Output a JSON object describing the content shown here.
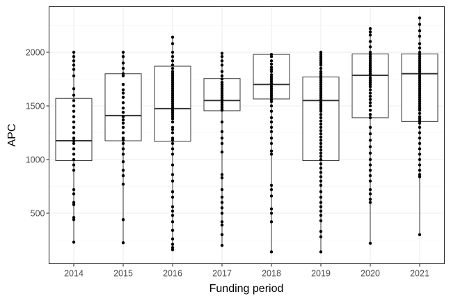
{
  "chart_data": {
    "type": "boxplot",
    "xlabel": "Funding period",
    "ylabel": "APC",
    "ylim": [
      50,
      2400
    ],
    "y_ticks": [
      500,
      1000,
      1500,
      2000
    ],
    "grid": true,
    "categories": [
      "2014",
      "2015",
      "2016",
      "2017",
      "2018",
      "2019",
      "2020",
      "2021"
    ],
    "boxes": [
      {
        "category": "2014",
        "whisker_low": 230,
        "q1": 990,
        "median": 1175,
        "q3": 1570,
        "whisker_high": 2000
      },
      {
        "category": "2015",
        "whisker_low": 225,
        "q1": 1175,
        "median": 1410,
        "q3": 1800,
        "whisker_high": 2000
      },
      {
        "category": "2016",
        "whisker_low": 160,
        "q1": 1170,
        "median": 1475,
        "q3": 1870,
        "whisker_high": 2140
      },
      {
        "category": "2017",
        "whisker_low": 200,
        "q1": 1455,
        "median": 1550,
        "q3": 1755,
        "whisker_high": 1990
      },
      {
        "category": "2018",
        "whisker_low": 140,
        "q1": 1565,
        "median": 1700,
        "q3": 1980,
        "whisker_high": 1980
      },
      {
        "category": "2019",
        "whisker_low": 140,
        "q1": 990,
        "median": 1550,
        "q3": 1770,
        "whisker_high": 2000
      },
      {
        "category": "2020",
        "whisker_low": 220,
        "q1": 1390,
        "median": 1785,
        "q3": 1985,
        "whisker_high": 2220
      },
      {
        "category": "2021",
        "whisker_low": 300,
        "q1": 1355,
        "median": 1800,
        "q3": 1985,
        "whisker_high": 2320
      }
    ],
    "points": [
      {
        "category": "2014",
        "values": [
          2000,
          1960,
          1920,
          1880,
          1840,
          1780,
          1660,
          1600,
          1550,
          1500,
          1450,
          1400,
          1350,
          1300,
          1250,
          1200,
          1175,
          1150,
          1100,
          1050,
          1000,
          950,
          900,
          720,
          680,
          600,
          580,
          460,
          440,
          230
        ]
      },
      {
        "category": "2015",
        "values": [
          2000,
          1960,
          1900,
          1850,
          1800,
          1780,
          1700,
          1650,
          1620,
          1580,
          1530,
          1480,
          1440,
          1400,
          1370,
          1340,
          1300,
          1250,
          1200,
          1180,
          1150,
          1100,
          1050,
          980,
          900,
          850,
          770,
          440,
          225
        ]
      },
      {
        "category": "2016",
        "values": [
          2140,
          2080,
          2000,
          1960,
          1920,
          1880,
          1850,
          1820,
          1800,
          1780,
          1760,
          1740,
          1720,
          1700,
          1680,
          1660,
          1640,
          1620,
          1600,
          1580,
          1560,
          1540,
          1520,
          1500,
          1480,
          1460,
          1440,
          1420,
          1400,
          1380,
          1350,
          1300,
          1280,
          1250,
          1200,
          1180,
          1150,
          1100,
          1050,
          950,
          860,
          800,
          700,
          650,
          560,
          520,
          480,
          420,
          340,
          260,
          210,
          180,
          160
        ]
      },
      {
        "category": "2017",
        "values": [
          1990,
          1960,
          1920,
          1880,
          1820,
          1780,
          1750,
          1720,
          1700,
          1680,
          1660,
          1640,
          1620,
          1600,
          1580,
          1560,
          1550,
          1530,
          1510,
          1490,
          1470,
          1460,
          1350,
          1260,
          1200,
          1150,
          1070,
          860,
          830,
          720,
          650,
          600,
          550,
          500,
          420,
          390,
          300,
          200
        ]
      },
      {
        "category": "2018",
        "values": [
          1980,
          1960,
          1920,
          1890,
          1860,
          1840,
          1820,
          1790,
          1770,
          1750,
          1730,
          1710,
          1700,
          1680,
          1660,
          1640,
          1620,
          1600,
          1580,
          1560,
          1540,
          1500,
          1450,
          1390,
          1350,
          1300,
          1260,
          1200,
          1150,
          1080,
          1050,
          760,
          720,
          660,
          540,
          500,
          420,
          140
        ]
      },
      {
        "category": "2019",
        "values": [
          2000,
          1980,
          1960,
          1940,
          1920,
          1900,
          1880,
          1850,
          1820,
          1800,
          1780,
          1760,
          1740,
          1720,
          1700,
          1680,
          1660,
          1640,
          1620,
          1600,
          1580,
          1560,
          1550,
          1530,
          1510,
          1490,
          1470,
          1450,
          1420,
          1390,
          1360,
          1330,
          1300,
          1270,
          1240,
          1210,
          1180,
          1150,
          1120,
          1090,
          1060,
          1030,
          1000,
          960,
          920,
          880,
          840,
          800,
          760,
          700,
          650,
          600,
          560,
          520,
          480,
          430,
          330,
          280,
          140
        ]
      },
      {
        "category": "2020",
        "values": [
          2220,
          2190,
          2160,
          2100,
          2050,
          2000,
          1980,
          1960,
          1940,
          1920,
          1900,
          1880,
          1860,
          1840,
          1820,
          1800,
          1785,
          1760,
          1740,
          1720,
          1700,
          1680,
          1650,
          1620,
          1590,
          1560,
          1530,
          1500,
          1460,
          1420,
          1390,
          1300,
          1240,
          1180,
          1120,
          1060,
          1000,
          950,
          900,
          850,
          800,
          720,
          680,
          630,
          600,
          220
        ]
      },
      {
        "category": "2021",
        "values": [
          2320,
          2260,
          2200,
          2150,
          2080,
          2040,
          2000,
          1980,
          1960,
          1940,
          1920,
          1900,
          1880,
          1860,
          1840,
          1820,
          1800,
          1780,
          1760,
          1740,
          1720,
          1700,
          1680,
          1660,
          1640,
          1620,
          1600,
          1580,
          1560,
          1540,
          1520,
          1500,
          1480,
          1460,
          1430,
          1400,
          1380,
          1360,
          1340,
          1300,
          1250,
          1200,
          1150,
          1100,
          1050,
          1000,
          950,
          900,
          860,
          840,
          300
        ]
      }
    ]
  }
}
